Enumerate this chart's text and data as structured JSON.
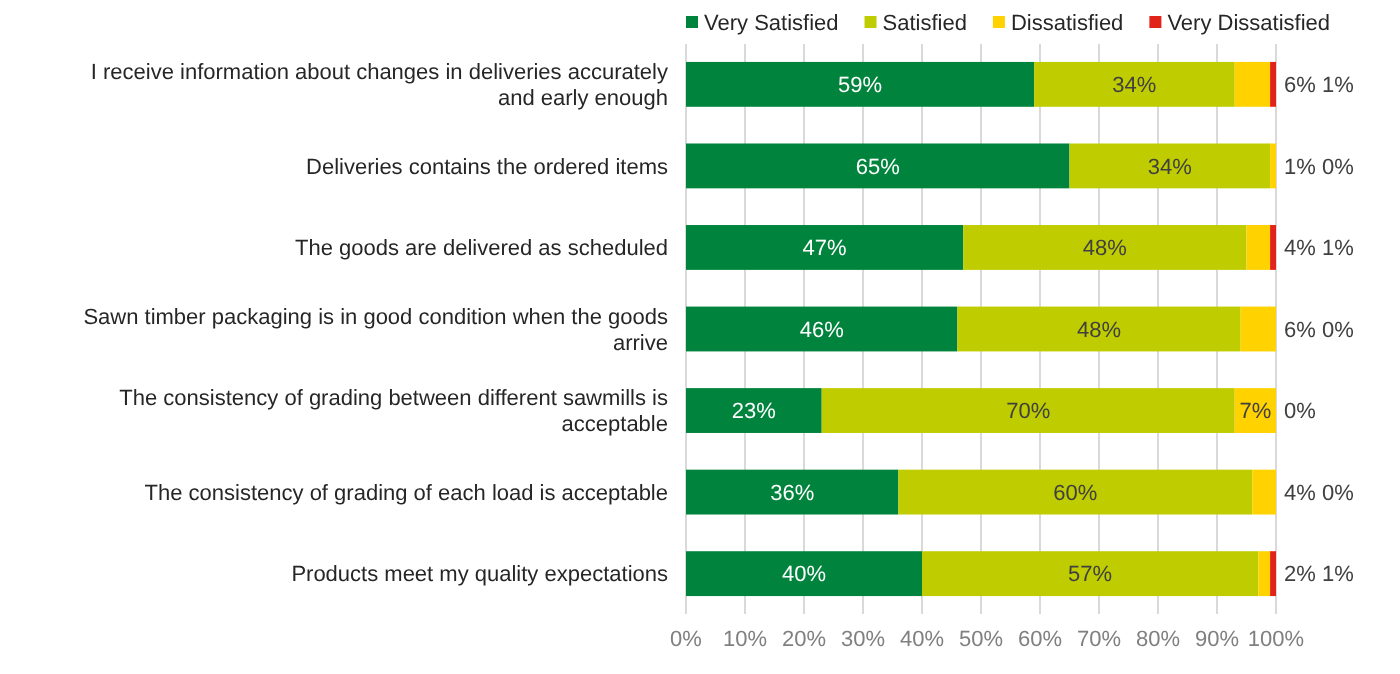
{
  "chart_data": {
    "type": "bar",
    "orientation": "horizontal",
    "stacked": true,
    "categories": [
      "I receive information about changes in deliveries accurately and early enough",
      "Deliveries contains the ordered items",
      "The goods are delivered as scheduled",
      "Sawn timber packaging is in good condition when the goods arrive",
      "The consistency of grading between different sawmills is acceptable",
      "The consistency of grading of each load is acceptable",
      "Products meet my quality expectations"
    ],
    "series": [
      {
        "name": "Very Satisfied",
        "color": "#00843d",
        "values": [
          59,
          65,
          47,
          46,
          23,
          36,
          40
        ]
      },
      {
        "name": "Satisfied",
        "color": "#bfcd00",
        "values": [
          34,
          34,
          48,
          48,
          70,
          60,
          57
        ]
      },
      {
        "name": "Dissatisfied",
        "color": "#ffd200",
        "values": [
          6,
          1,
          4,
          6,
          7,
          4,
          2
        ]
      },
      {
        "name": "Very Dissatisfied",
        "color": "#e2231a",
        "values": [
          1,
          0,
          1,
          0,
          0,
          0,
          1
        ]
      }
    ],
    "xlim": [
      0,
      100
    ],
    "xticks": [
      {
        "value": 0,
        "label": "0%"
      },
      {
        "value": 10,
        "label": "10%"
      },
      {
        "value": 20,
        "label": "20%"
      },
      {
        "value": 30,
        "label": "30%"
      },
      {
        "value": 40,
        "label": "40%"
      },
      {
        "value": 50,
        "label": "50%"
      },
      {
        "value": 60,
        "label": "60%"
      },
      {
        "value": 70,
        "label": "70%"
      },
      {
        "value": 80,
        "label": "80%"
      },
      {
        "value": 90,
        "label": "90%"
      },
      {
        "value": 100,
        "label": "100%"
      }
    ],
    "value_labels": [
      [
        "59%",
        "65%",
        "47%",
        "46%",
        "23%",
        "36%",
        "40%"
      ],
      [
        "34%",
        "34%",
        "48%",
        "48%",
        "70%",
        "60%",
        "57%"
      ],
      [
        "6%",
        "1%",
        "4%",
        "6%",
        "7%",
        "4%",
        "2%"
      ],
      [
        "1%",
        "0%",
        "1%",
        "0%",
        "0%",
        "0%",
        "1%"
      ]
    ],
    "grid": "x",
    "legend": "top"
  }
}
